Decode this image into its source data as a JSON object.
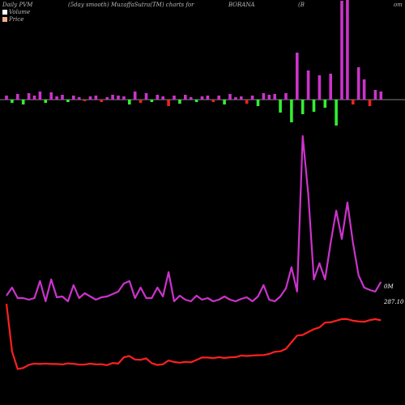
{
  "header": {
    "left": "Daily PVM",
    "mid": "(5day smooth) MuzaffaSutra(TM) charts for",
    "symbol": "BORANA",
    "right_b": "(B",
    "right_edge": "om"
  },
  "legend": [
    {
      "label": "Volume",
      "color": "#ffffff"
    },
    {
      "label": "Price",
      "color": "#f4b183"
    }
  ],
  "labels": {
    "volume_value": "0M",
    "price_value": "287.10"
  },
  "colors": {
    "background": "#000000",
    "pvm_line": "#cc33cc",
    "price_line": "#ff2020",
    "bar_up": "#cc33cc",
    "bar_down_green": "#33ee33",
    "bar_down_red": "#ee2222",
    "zero_line": "#aaaaaa"
  },
  "chart_data": {
    "type": "line",
    "description_series": [
      {
        "name": "Volume",
        "values": [
          365,
          355,
          368,
          368,
          370,
          368,
          347,
          372,
          345,
          367,
          366,
          372,
          352,
          368,
          362,
          366,
          370,
          367,
          366,
          363,
          360,
          350,
          347,
          368,
          355,
          368,
          368,
          355,
          366,
          336,
          372,
          365,
          370,
          372,
          365,
          370,
          368,
          372,
          370,
          366,
          370,
          372,
          369,
          367,
          372,
          366,
          352,
          370,
          372,
          366,
          356,
          330,
          360,
          168,
          240,
          345,
          325,
          345,
          300,
          260,
          295,
          250,
          300,
          340,
          355,
          358,
          360,
          348
        ]
      },
      {
        "name": "Price",
        "values": [
          100.0,
          38.0,
          15.2,
          16.5,
          20.6,
          22.3,
          21.7,
          22.3,
          21.7,
          21.7,
          21.2,
          22.5,
          21.9,
          20.9,
          21.0,
          22.1,
          21.2,
          21.4,
          20.2,
          23.0,
          22.2,
          30.4,
          32.0,
          27.5,
          27.2,
          29.0,
          22.7,
          20.4,
          21.4,
          26.3,
          24.3,
          23.4,
          24.5,
          23.9,
          27.0,
          30.2,
          30.1,
          29.4,
          30.5,
          29.6,
          30.4,
          30.6,
          32.7,
          32.1,
          32.7,
          33.2,
          33.4,
          34.7,
          37.6,
          38.2,
          41.4,
          50.0,
          58.6,
          59.5,
          63.3,
          67.0,
          69.3,
          75.5,
          76.0,
          78.0,
          80.1,
          80.0,
          78.0,
          77.0,
          76.5,
          78.7,
          80.0,
          78.5
        ]
      }
    ],
    "volume_bars": [
      {
        "h": 5,
        "c": "up"
      },
      {
        "h": -4,
        "c": "green"
      },
      {
        "h": 7,
        "c": "up"
      },
      {
        "h": -6,
        "c": "green"
      },
      {
        "h": 8,
        "c": "up"
      },
      {
        "h": 5,
        "c": "up"
      },
      {
        "h": 10,
        "c": "up"
      },
      {
        "h": -4,
        "c": "green"
      },
      {
        "h": 9,
        "c": "up"
      },
      {
        "h": 4,
        "c": "up"
      },
      {
        "h": 6,
        "c": "up"
      },
      {
        "h": -3,
        "c": "green"
      },
      {
        "h": 5,
        "c": "up"
      },
      {
        "h": 3,
        "c": "up"
      },
      {
        "h": -2,
        "c": "red"
      },
      {
        "h": 4,
        "c": "up"
      },
      {
        "h": 5,
        "c": "up"
      },
      {
        "h": -3,
        "c": "red"
      },
      {
        "h": 3,
        "c": "up"
      },
      {
        "h": 6,
        "c": "up"
      },
      {
        "h": 5,
        "c": "up"
      },
      {
        "h": 4,
        "c": "up"
      },
      {
        "h": -6,
        "c": "green"
      },
      {
        "h": 10,
        "c": "up"
      },
      {
        "h": -4,
        "c": "red"
      },
      {
        "h": 8,
        "c": "up"
      },
      {
        "h": -3,
        "c": "green"
      },
      {
        "h": 6,
        "c": "up"
      },
      {
        "h": 4,
        "c": "up"
      },
      {
        "h": -8,
        "c": "red"
      },
      {
        "h": 5,
        "c": "up"
      },
      {
        "h": -5,
        "c": "green"
      },
      {
        "h": 6,
        "c": "up"
      },
      {
        "h": 3,
        "c": "up"
      },
      {
        "h": -3,
        "c": "green"
      },
      {
        "h": 4,
        "c": "up"
      },
      {
        "h": 5,
        "c": "up"
      },
      {
        "h": -3,
        "c": "red"
      },
      {
        "h": 5,
        "c": "up"
      },
      {
        "h": -6,
        "c": "green"
      },
      {
        "h": 7,
        "c": "up"
      },
      {
        "h": 3,
        "c": "up"
      },
      {
        "h": 4,
        "c": "up"
      },
      {
        "h": -5,
        "c": "red"
      },
      {
        "h": 5,
        "c": "up"
      },
      {
        "h": -8,
        "c": "green"
      },
      {
        "h": 8,
        "c": "up"
      },
      {
        "h": 6,
        "c": "up"
      },
      {
        "h": 7,
        "c": "up"
      },
      {
        "h": -16,
        "c": "green"
      },
      {
        "h": 8,
        "c": "up"
      },
      {
        "h": -28,
        "c": "green"
      },
      {
        "h": 58,
        "c": "up"
      },
      {
        "h": -18,
        "c": "green"
      },
      {
        "h": 36,
        "c": "up"
      },
      {
        "h": -15,
        "c": "green"
      },
      {
        "h": 30,
        "c": "up"
      },
      {
        "h": -10,
        "c": "green"
      },
      {
        "h": 32,
        "c": "up"
      },
      {
        "h": -32,
        "c": "green"
      },
      {
        "h": 122,
        "c": "up"
      },
      {
        "h": 125,
        "c": "up"
      },
      {
        "h": -6,
        "c": "red"
      },
      {
        "h": 40,
        "c": "up"
      },
      {
        "h": 25,
        "c": "up"
      },
      {
        "h": -8,
        "c": "red"
      },
      {
        "h": 12,
        "c": "up"
      },
      {
        "h": 10,
        "c": "up"
      }
    ]
  }
}
